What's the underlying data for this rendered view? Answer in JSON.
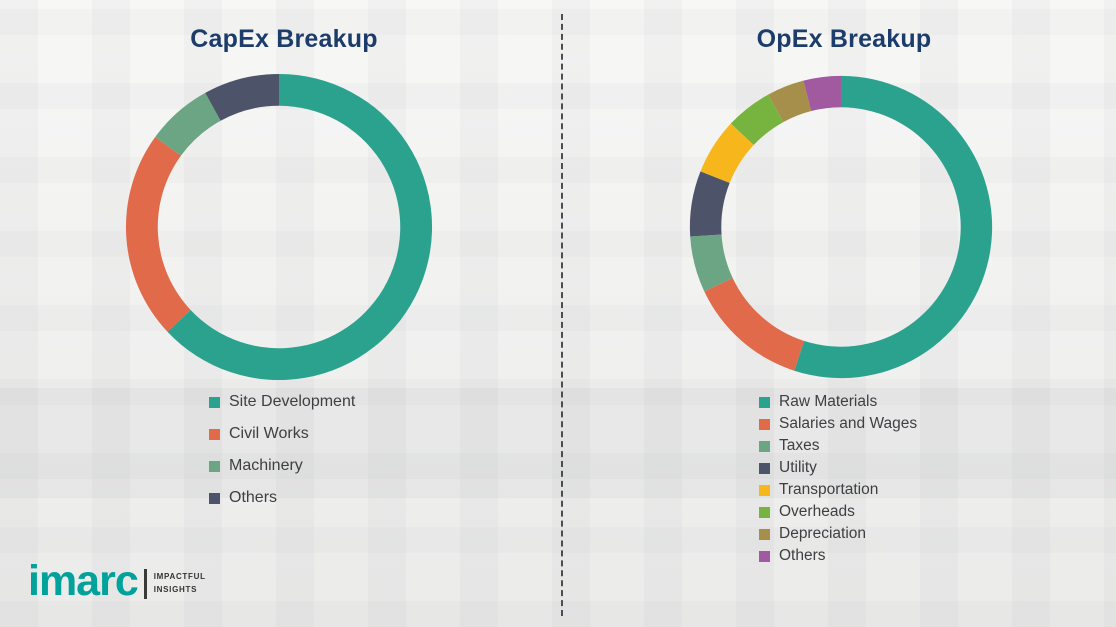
{
  "chart_data": [
    {
      "type": "pie",
      "donut": true,
      "title": "CapEx Breakup",
      "categories": [
        "Site Development",
        "Civil Works",
        "Machinery",
        "Others"
      ],
      "values": [
        63,
        22,
        7,
        8
      ],
      "colors": [
        "#2BA28E",
        "#E06A4A",
        "#6BA583",
        "#4D5369"
      ],
      "legend_position": "below-left",
      "start_angle_deg": 0,
      "direction": "clockwise"
    },
    {
      "type": "pie",
      "donut": true,
      "title": "OpEx Breakup",
      "categories": [
        "Raw Materials",
        "Salaries and Wages",
        "Taxes",
        "Utility",
        "Transportation",
        "Overheads",
        "Depreciation",
        "Others"
      ],
      "values": [
        55,
        13,
        6,
        7,
        6,
        5,
        4,
        4
      ],
      "colors": [
        "#2BA28E",
        "#E06A4A",
        "#6BA583",
        "#4D5369",
        "#F7B71C",
        "#77B43F",
        "#A68F4A",
        "#A159A0"
      ],
      "legend_position": "below-left",
      "start_angle_deg": 0,
      "direction": "clockwise"
    }
  ],
  "branding": {
    "logo_text": "imarc",
    "tagline": [
      "IMPACTFUL",
      "INSIGHTS"
    ],
    "logo_color": "#00A29B"
  }
}
